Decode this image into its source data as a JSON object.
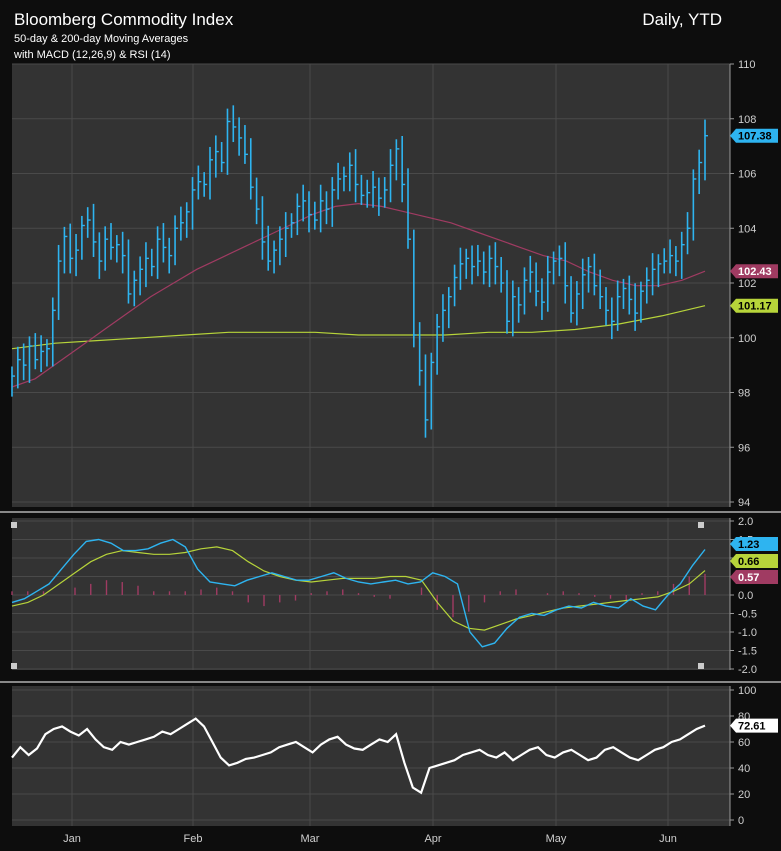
{
  "header": {
    "title": "Bloomberg Commodity Index",
    "subtitle_1": "50-day & 200-day Moving Averages",
    "subtitle_2": "with MACD (12,26,9) & RSI (14)",
    "timeframe": "Daily, YTD"
  },
  "colors": {
    "background": "#0d0d0d",
    "panel": "#333333",
    "price_bars": "#2eb4f0",
    "ma50": "#a03b62",
    "ma200": "#b7d43a",
    "macd_line": "#2eb4f0",
    "signal_line": "#b7d43a",
    "histogram": "#a03b62",
    "rsi_line": "#ffffff"
  },
  "chart_data": [
    {
      "type": "line",
      "panel": "price",
      "x_labels": [
        "Jan",
        "Feb",
        "Mar",
        "Apr",
        "May",
        "Jun"
      ],
      "ylim": [
        94,
        110
      ],
      "yticks": [
        94,
        96,
        98,
        100,
        102,
        104,
        106,
        108,
        110
      ],
      "grid": true,
      "series": [
        {
          "name": "Bloomberg Commodity Index",
          "style": "ohlc-bars",
          "values": [
            98.6,
            99.2,
            99.0,
            99.7,
            99.2,
            99.5,
            99.6,
            101.0,
            102.8,
            103.7,
            102.9,
            103.2,
            104.1,
            104.3,
            103.5,
            102.8,
            103.6,
            103.3,
            103.4,
            103.0,
            101.6,
            102.1,
            102.5,
            102.9,
            102.6,
            103.6,
            103.3,
            103.0,
            104.0,
            104.2,
            104.6,
            105.4,
            105.7,
            105.6,
            106.5,
            106.8,
            106.4,
            107.9,
            107.7,
            107.3,
            106.7,
            105.5,
            104.7,
            103.5,
            102.8,
            103.2,
            103.6,
            104.0,
            104.2,
            104.8,
            105.0,
            104.5,
            104.3,
            105.0,
            104.7,
            105.4,
            105.8,
            105.9,
            106.3,
            105.6,
            105.2,
            105.3,
            105.5,
            105.1,
            105.4,
            106.3,
            106.9,
            105.6,
            103.6,
            100.1,
            98.8,
            97.0,
            99.1,
            100.4,
            101.0,
            101.5,
            102.2,
            102.7,
            102.9,
            102.6,
            102.8,
            102.4,
            102.9,
            102.6,
            102.0,
            100.6,
            101.5,
            101.2,
            102.1,
            102.4,
            101.7,
            101.3,
            102.4,
            102.8,
            102.9,
            101.9,
            100.9,
            101.6,
            102.3,
            102.6,
            101.9,
            101.5,
            101.0,
            100.6,
            101.5,
            101.8,
            101.4,
            100.9,
            101.7,
            102.1,
            102.5,
            102.7,
            102.8,
            103.0,
            102.8,
            103.4,
            104.0,
            105.8,
            106.4,
            107.38
          ]
        },
        {
          "name": "50-day MA",
          "style": "line",
          "values": [
            98.2,
            98.5,
            99.1,
            99.7,
            100.3,
            100.9,
            101.5,
            102.0,
            102.5,
            102.9,
            103.3,
            103.7,
            104.1,
            104.5,
            104.8,
            104.9,
            104.8,
            104.6,
            104.4,
            104.2,
            103.9,
            103.6,
            103.3,
            103.0,
            102.8,
            102.4,
            102.1,
            101.9,
            101.9,
            102.1,
            102.43
          ]
        },
        {
          "name": "200-day MA",
          "style": "line",
          "values": [
            99.6,
            99.8,
            99.9,
            100.0,
            100.1,
            100.2,
            100.2,
            100.2,
            100.1,
            100.1,
            100.1,
            100.2,
            100.2,
            100.3,
            100.5,
            100.8,
            101.17
          ]
        }
      ],
      "last_value_tags": [
        "107.38",
        "102.43",
        "101.17"
      ]
    },
    {
      "type": "line",
      "panel": "macd",
      "ylim": [
        -2.0,
        2.0
      ],
      "yticks": [
        "2.0",
        "1.5",
        "1.0",
        "0.5",
        "0.0",
        "-0.5",
        "-1.0",
        "-1.5",
        "-2.0"
      ],
      "grid": true,
      "series": [
        {
          "name": "MACD",
          "values": [
            -0.2,
            -0.1,
            0.1,
            0.3,
            0.7,
            1.1,
            1.45,
            1.5,
            1.4,
            1.2,
            1.2,
            1.25,
            1.4,
            1.5,
            1.3,
            0.7,
            0.35,
            0.3,
            0.25,
            0.4,
            0.5,
            0.6,
            0.5,
            0.4,
            0.4,
            0.5,
            0.6,
            0.45,
            0.35,
            0.3,
            0.35,
            0.4,
            0.3,
            0.35,
            0.6,
            0.5,
            0.3,
            -1.0,
            -1.4,
            -1.3,
            -0.9,
            -0.6,
            -0.5,
            -0.55,
            -0.4,
            -0.3,
            -0.35,
            -0.2,
            -0.3,
            -0.35,
            -0.1,
            -0.3,
            -0.4,
            0.0,
            0.3,
            0.8,
            1.23
          ]
        },
        {
          "name": "Signal",
          "values": [
            -0.3,
            -0.2,
            0.0,
            0.3,
            0.6,
            0.9,
            1.1,
            1.2,
            1.15,
            1.1,
            1.1,
            1.15,
            1.25,
            1.3,
            1.2,
            0.9,
            0.65,
            0.5,
            0.4,
            0.35,
            0.4,
            0.45,
            0.45,
            0.45,
            0.5,
            0.5,
            0.4,
            -0.2,
            -0.7,
            -0.9,
            -0.95,
            -0.8,
            -0.65,
            -0.55,
            -0.45,
            -0.35,
            -0.3,
            -0.25,
            -0.2,
            -0.15,
            -0.1,
            -0.05,
            0.1,
            0.3,
            0.66
          ]
        },
        {
          "name": "Histogram",
          "style": "bars",
          "values": [
            0.1,
            0.1,
            0.1,
            0.0,
            0.2,
            0.3,
            0.4,
            0.35,
            0.25,
            0.1,
            0.1,
            0.1,
            0.15,
            0.2,
            0.1,
            -0.2,
            -0.3,
            -0.2,
            -0.15,
            0.05,
            0.1,
            0.15,
            0.05,
            -0.05,
            -0.1,
            0.0,
            0.2,
            -0.4,
            -0.6,
            -0.45,
            -0.2,
            0.1,
            0.15,
            0.0,
            0.05,
            0.1,
            0.05,
            -0.05,
            -0.1,
            -0.15,
            0.05,
            0.1,
            0.3,
            0.5,
            0.57
          ]
        }
      ],
      "last_value_tags": [
        "1.23",
        "0.66",
        "0.57"
      ]
    },
    {
      "type": "line",
      "panel": "rsi",
      "ylim": [
        0,
        100
      ],
      "yticks": [
        0,
        20,
        40,
        60,
        80,
        100
      ],
      "grid": true,
      "series": [
        {
          "name": "RSI (14)",
          "values": [
            48,
            56,
            50,
            55,
            66,
            70,
            72,
            68,
            65,
            70,
            62,
            56,
            54,
            60,
            58,
            60,
            62,
            64,
            68,
            66,
            70,
            74,
            78,
            72,
            60,
            48,
            42,
            44,
            47,
            48,
            50,
            52,
            56,
            58,
            60,
            56,
            52,
            58,
            62,
            64,
            58,
            55,
            54,
            58,
            62,
            60,
            66,
            44,
            25,
            21,
            40,
            42,
            44,
            46,
            50,
            52,
            54,
            50,
            48,
            52,
            46,
            50,
            54,
            56,
            50,
            48,
            52,
            54,
            50,
            46,
            48,
            54,
            56,
            52,
            48,
            46,
            50,
            54,
            56,
            60,
            62,
            66,
            70,
            72.61
          ]
        }
      ],
      "last_value_tags": [
        "72.61"
      ]
    }
  ]
}
